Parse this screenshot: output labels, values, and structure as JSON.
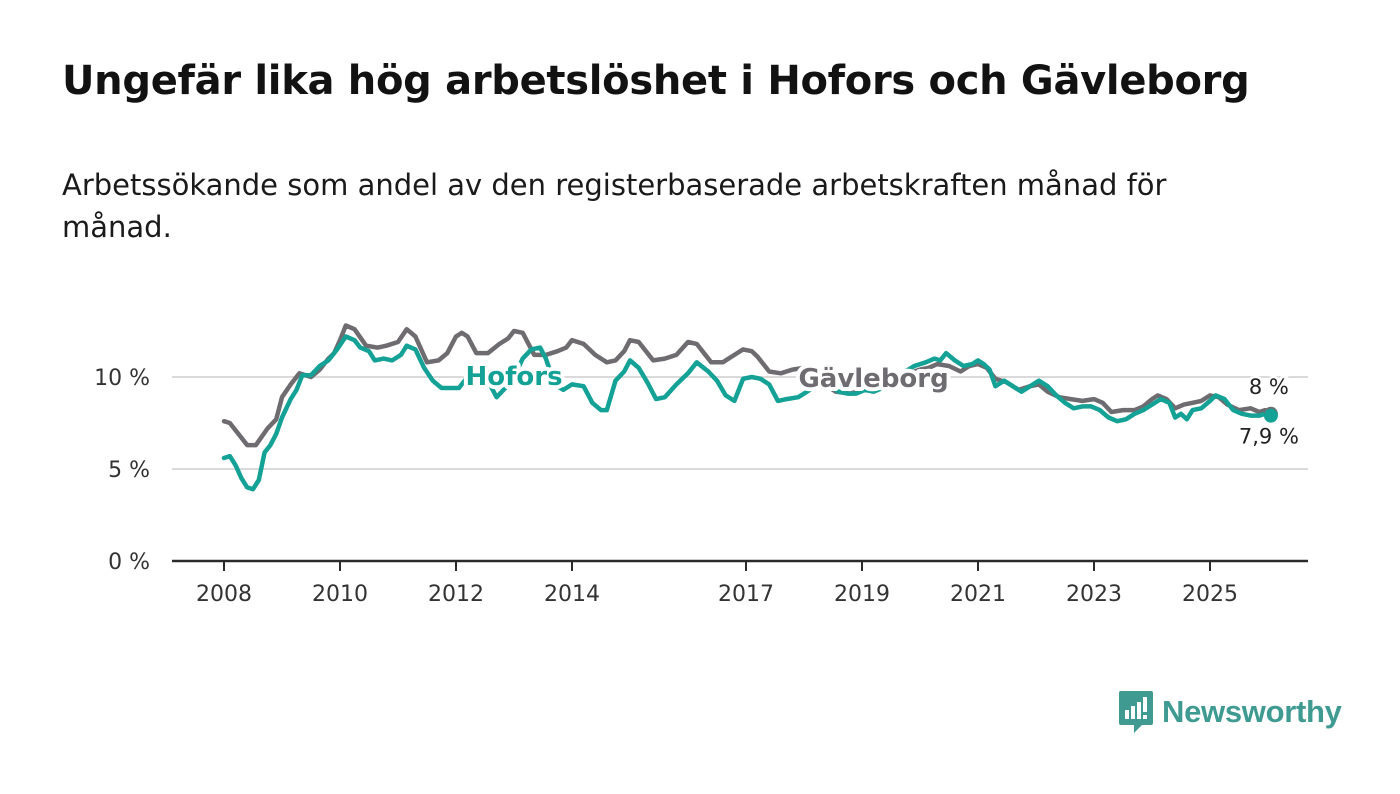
{
  "header": {
    "title": "Ungefär lika hög arbetslöshet i Hofors och Gävleborg",
    "subtitle": "Arbetssökande som andel av den registerbaserade arbetskraften månad för månad."
  },
  "brand": {
    "name": "Newsworthy",
    "color": "#3f9b92",
    "icon": "newsworthy-logo-icon"
  },
  "chart_data": {
    "type": "line",
    "title": "Ungefär lika hög arbetslöshet i Hofors och Gävleborg",
    "subtitle": "Arbetssökande som andel av den registerbaserade arbetskraften månad för månad.",
    "xlabel": "",
    "ylabel": "",
    "xlim": [
      2008,
      2026.1
    ],
    "ylim": [
      0,
      13
    ],
    "grid": true,
    "x_ticks": [
      {
        "value": 2008,
        "label": "2008"
      },
      {
        "value": 2010,
        "label": "2010"
      },
      {
        "value": 2012,
        "label": "2012"
      },
      {
        "value": 2014,
        "label": "2014"
      },
      {
        "value": 2017,
        "label": "2017"
      },
      {
        "value": 2019,
        "label": "2019"
      },
      {
        "value": 2021,
        "label": "2021"
      },
      {
        "value": 2023,
        "label": "2023"
      },
      {
        "value": 2025,
        "label": "2025"
      }
    ],
    "y_ticks": [
      {
        "value": 0,
        "label": "0 %"
      },
      {
        "value": 5,
        "label": "5 %"
      },
      {
        "value": 10,
        "label": "10 %"
      }
    ],
    "series": [
      {
        "name": "Gävleborg",
        "color": "#6e6c70",
        "end_label": "8 %",
        "points": [
          [
            2008.0,
            7.6
          ],
          [
            2008.1,
            7.5
          ],
          [
            2008.25,
            6.9
          ],
          [
            2008.4,
            6.3
          ],
          [
            2008.55,
            6.3
          ],
          [
            2008.75,
            7.2
          ],
          [
            2008.9,
            7.7
          ],
          [
            2009.0,
            8.9
          ],
          [
            2009.15,
            9.6
          ],
          [
            2009.3,
            10.2
          ],
          [
            2009.5,
            10.0
          ],
          [
            2009.65,
            10.4
          ],
          [
            2009.8,
            11.0
          ],
          [
            2009.9,
            11.3
          ],
          [
            2010.0,
            12.0
          ],
          [
            2010.1,
            12.8
          ],
          [
            2010.25,
            12.6
          ],
          [
            2010.45,
            11.7
          ],
          [
            2010.65,
            11.6
          ],
          [
            2010.8,
            11.7
          ],
          [
            2011.0,
            11.9
          ],
          [
            2011.15,
            12.6
          ],
          [
            2011.3,
            12.2
          ],
          [
            2011.5,
            10.8
          ],
          [
            2011.7,
            10.9
          ],
          [
            2011.85,
            11.3
          ],
          [
            2012.0,
            12.2
          ],
          [
            2012.1,
            12.4
          ],
          [
            2012.2,
            12.2
          ],
          [
            2012.35,
            11.3
          ],
          [
            2012.55,
            11.3
          ],
          [
            2012.75,
            11.8
          ],
          [
            2012.9,
            12.1
          ],
          [
            2013.0,
            12.5
          ],
          [
            2013.15,
            12.4
          ],
          [
            2013.35,
            11.2
          ],
          [
            2013.55,
            11.2
          ],
          [
            2013.75,
            11.4
          ],
          [
            2013.9,
            11.6
          ],
          [
            2014.0,
            12.0
          ],
          [
            2014.2,
            11.8
          ],
          [
            2014.4,
            11.2
          ],
          [
            2014.6,
            10.8
          ],
          [
            2014.75,
            10.9
          ],
          [
            2014.9,
            11.4
          ],
          [
            2015.0,
            12.0
          ],
          [
            2015.15,
            11.9
          ],
          [
            2015.4,
            10.9
          ],
          [
            2015.6,
            11.0
          ],
          [
            2015.8,
            11.2
          ],
          [
            2016.0,
            11.9
          ],
          [
            2016.15,
            11.8
          ],
          [
            2016.4,
            10.8
          ],
          [
            2016.6,
            10.8
          ],
          [
            2016.8,
            11.2
          ],
          [
            2016.95,
            11.5
          ],
          [
            2017.1,
            11.4
          ],
          [
            2017.2,
            11.1
          ],
          [
            2017.4,
            10.3
          ],
          [
            2017.6,
            10.2
          ],
          [
            2017.8,
            10.4
          ],
          [
            2018.0,
            10.5
          ],
          [
            2018.15,
            10.3
          ],
          [
            2018.35,
            9.6
          ],
          [
            2018.55,
            9.2
          ],
          [
            2018.8,
            9.1
          ],
          [
            2019.0,
            9.3
          ],
          [
            2019.2,
            9.3
          ],
          [
            2019.4,
            9.6
          ],
          [
            2019.6,
            9.8
          ],
          [
            2019.8,
            10.2
          ],
          [
            2020.0,
            10.4
          ],
          [
            2020.15,
            10.5
          ],
          [
            2020.3,
            10.7
          ],
          [
            2020.5,
            10.6
          ],
          [
            2020.7,
            10.3
          ],
          [
            2020.85,
            10.6
          ],
          [
            2021.0,
            10.7
          ],
          [
            2021.15,
            10.5
          ],
          [
            2021.3,
            9.9
          ],
          [
            2021.5,
            9.7
          ],
          [
            2021.7,
            9.3
          ],
          [
            2021.9,
            9.5
          ],
          [
            2022.05,
            9.6
          ],
          [
            2022.2,
            9.2
          ],
          [
            2022.4,
            8.9
          ],
          [
            2022.6,
            8.8
          ],
          [
            2022.8,
            8.7
          ],
          [
            2023.0,
            8.8
          ],
          [
            2023.15,
            8.6
          ],
          [
            2023.3,
            8.1
          ],
          [
            2023.5,
            8.2
          ],
          [
            2023.7,
            8.2
          ],
          [
            2023.85,
            8.4
          ],
          [
            2024.0,
            8.8
          ],
          [
            2024.1,
            9.0
          ],
          [
            2024.25,
            8.8
          ],
          [
            2024.4,
            8.3
          ],
          [
            2024.55,
            8.5
          ],
          [
            2024.7,
            8.6
          ],
          [
            2024.85,
            8.7
          ],
          [
            2025.0,
            9.0
          ],
          [
            2025.15,
            8.9
          ],
          [
            2025.3,
            8.5
          ],
          [
            2025.5,
            8.2
          ],
          [
            2025.7,
            8.3
          ],
          [
            2025.85,
            8.1
          ],
          [
            2025.95,
            8.2
          ],
          [
            2026.05,
            8.0
          ]
        ]
      },
      {
        "name": "Hofors",
        "color": "#14a196",
        "end_label": "7,9 %",
        "points": [
          [
            2008.0,
            5.6
          ],
          [
            2008.1,
            5.7
          ],
          [
            2008.2,
            5.2
          ],
          [
            2008.3,
            4.5
          ],
          [
            2008.4,
            4.0
          ],
          [
            2008.5,
            3.9
          ],
          [
            2008.6,
            4.4
          ],
          [
            2008.7,
            5.9
          ],
          [
            2008.8,
            6.3
          ],
          [
            2008.9,
            6.9
          ],
          [
            2009.0,
            7.8
          ],
          [
            2009.15,
            8.8
          ],
          [
            2009.25,
            9.3
          ],
          [
            2009.35,
            10.1
          ],
          [
            2009.5,
            10.1
          ],
          [
            2009.65,
            10.6
          ],
          [
            2009.8,
            10.9
          ],
          [
            2009.95,
            11.5
          ],
          [
            2010.1,
            12.2
          ],
          [
            2010.25,
            12.0
          ],
          [
            2010.35,
            11.6
          ],
          [
            2010.5,
            11.4
          ],
          [
            2010.6,
            10.9
          ],
          [
            2010.75,
            11.0
          ],
          [
            2010.9,
            10.9
          ],
          [
            2011.05,
            11.2
          ],
          [
            2011.15,
            11.7
          ],
          [
            2011.3,
            11.5
          ],
          [
            2011.45,
            10.5
          ],
          [
            2011.6,
            9.8
          ],
          [
            2011.75,
            9.4
          ],
          [
            2011.9,
            9.4
          ],
          [
            2012.05,
            9.4
          ],
          [
            2012.2,
            10.0
          ],
          [
            2012.35,
            10.0
          ],
          [
            2012.55,
            9.8
          ],
          [
            2012.7,
            8.9
          ],
          [
            2012.85,
            9.4
          ],
          [
            2013.0,
            10.0
          ],
          [
            2013.15,
            11.0
          ],
          [
            2013.3,
            11.5
          ],
          [
            2013.45,
            11.6
          ],
          [
            2013.55,
            11.0
          ],
          [
            2013.7,
            9.6
          ],
          [
            2013.85,
            9.3
          ],
          [
            2014.0,
            9.6
          ],
          [
            2014.2,
            9.5
          ],
          [
            2014.35,
            8.6
          ],
          [
            2014.5,
            8.2
          ],
          [
            2014.6,
            8.2
          ],
          [
            2014.75,
            9.8
          ],
          [
            2014.9,
            10.3
          ],
          [
            2015.0,
            10.9
          ],
          [
            2015.15,
            10.5
          ],
          [
            2015.3,
            9.7
          ],
          [
            2015.45,
            8.8
          ],
          [
            2015.6,
            8.9
          ],
          [
            2015.8,
            9.6
          ],
          [
            2016.0,
            10.2
          ],
          [
            2016.15,
            10.8
          ],
          [
            2016.35,
            10.3
          ],
          [
            2016.5,
            9.8
          ],
          [
            2016.65,
            9.0
          ],
          [
            2016.8,
            8.7
          ],
          [
            2016.95,
            9.9
          ],
          [
            2017.1,
            10.0
          ],
          [
            2017.25,
            9.9
          ],
          [
            2017.4,
            9.6
          ],
          [
            2017.55,
            8.7
          ],
          [
            2017.7,
            8.8
          ],
          [
            2017.9,
            8.9
          ],
          [
            2018.0,
            9.1
          ],
          [
            2018.15,
            9.4
          ],
          [
            2018.3,
            9.6
          ],
          [
            2018.45,
            9.5
          ],
          [
            2018.6,
            9.2
          ],
          [
            2018.75,
            9.1
          ],
          [
            2018.9,
            9.1
          ],
          [
            2019.05,
            9.3
          ],
          [
            2019.2,
            9.2
          ],
          [
            2019.35,
            9.4
          ],
          [
            2019.5,
            9.7
          ],
          [
            2019.7,
            10.2
          ],
          [
            2019.9,
            10.6
          ],
          [
            2020.1,
            10.8
          ],
          [
            2020.25,
            11.0
          ],
          [
            2020.35,
            10.9
          ],
          [
            2020.45,
            11.3
          ],
          [
            2020.6,
            10.9
          ],
          [
            2020.75,
            10.6
          ],
          [
            2020.9,
            10.7
          ],
          [
            2021.0,
            10.9
          ],
          [
            2021.1,
            10.7
          ],
          [
            2021.2,
            10.4
          ],
          [
            2021.3,
            9.5
          ],
          [
            2021.45,
            9.8
          ],
          [
            2021.6,
            9.5
          ],
          [
            2021.75,
            9.2
          ],
          [
            2021.9,
            9.5
          ],
          [
            2022.05,
            9.8
          ],
          [
            2022.2,
            9.5
          ],
          [
            2022.35,
            9.0
          ],
          [
            2022.5,
            8.6
          ],
          [
            2022.65,
            8.3
          ],
          [
            2022.8,
            8.4
          ],
          [
            2022.95,
            8.4
          ],
          [
            2023.1,
            8.2
          ],
          [
            2023.25,
            7.8
          ],
          [
            2023.4,
            7.6
          ],
          [
            2023.55,
            7.7
          ],
          [
            2023.7,
            8.0
          ],
          [
            2023.85,
            8.2
          ],
          [
            2024.0,
            8.5
          ],
          [
            2024.15,
            8.8
          ],
          [
            2024.3,
            8.6
          ],
          [
            2024.4,
            7.8
          ],
          [
            2024.5,
            8.0
          ],
          [
            2024.6,
            7.7
          ],
          [
            2024.7,
            8.2
          ],
          [
            2024.85,
            8.3
          ],
          [
            2025.0,
            8.7
          ],
          [
            2025.1,
            9.0
          ],
          [
            2025.25,
            8.8
          ],
          [
            2025.4,
            8.2
          ],
          [
            2025.55,
            8.0
          ],
          [
            2025.7,
            7.9
          ],
          [
            2025.85,
            7.9
          ],
          [
            2025.95,
            8.0
          ],
          [
            2026.05,
            7.9
          ]
        ]
      }
    ],
    "annotations": [
      {
        "text": "Hofors",
        "series": "Hofors",
        "x": 2013.0,
        "y": 10.0
      },
      {
        "text": "Gävleborg",
        "series": "Gävleborg",
        "x": 2019.2,
        "y": 9.9
      }
    ]
  }
}
